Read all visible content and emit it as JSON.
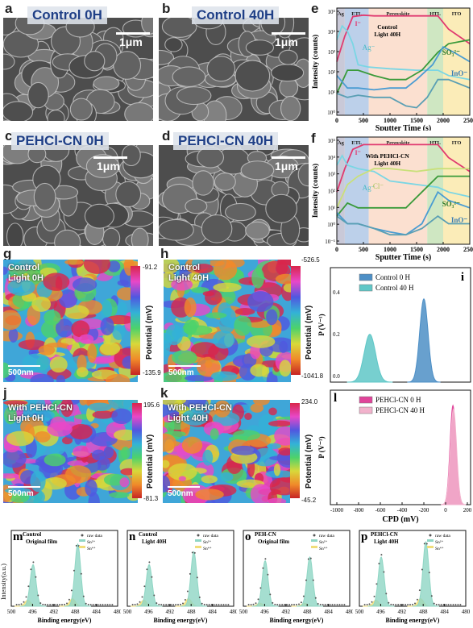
{
  "panels": {
    "a": {
      "letter": "a",
      "title": "Control 0H",
      "scale": "1μm"
    },
    "b": {
      "letter": "b",
      "title": "Control 40H",
      "scale": "1μm"
    },
    "c": {
      "letter": "c",
      "title": "PEHCl-CN 0H",
      "scale": "1μm"
    },
    "d": {
      "letter": "d",
      "title": "PEHCl-CN 40H",
      "scale": "1μm"
    }
  },
  "tof": {
    "e": {
      "letter": "e",
      "regions": [
        "Ag",
        "ETL",
        "Perovskite",
        "HTL",
        "ITO"
      ],
      "annotation_lines": [
        "Control",
        "Light 40H"
      ],
      "species": {
        "i": "I⁻",
        "ag": "Ag⁻",
        "so": "SO₃²⁻",
        "ino": "InO⁻"
      },
      "ylabel": "Intensity (counts)",
      "xlabel": "Sputter Time (s)",
      "xticks": [
        "0",
        "500",
        "1000",
        "1500",
        "2000",
        "2500"
      ],
      "yticks": [
        "10⁵",
        "10⁴",
        "10³",
        "10²",
        "10¹",
        "10⁰"
      ]
    },
    "f": {
      "letter": "f",
      "regions": [
        "Ag",
        "ETL",
        "Perovskite",
        "HTL",
        "ITO"
      ],
      "annotation_lines": [
        "With PEHCl-CN",
        "Light 40H"
      ],
      "species": {
        "i": "I⁻",
        "ag": "Ag⁻",
        "cl": "Cl⁻",
        "so": "SO₃²⁻",
        "ino": "InO⁻"
      },
      "ylabel": "Intensity (counts)",
      "xlabel": "Sputter Time (s)",
      "xticks": [
        "0",
        "500",
        "1000",
        "1500",
        "2000",
        "2500"
      ],
      "yticks": [
        "10⁵",
        "10⁴",
        "10³",
        "10²",
        "10¹",
        "10⁰",
        "10⁻¹"
      ]
    }
  },
  "kpfm": {
    "g": {
      "letter": "g",
      "title": "Control\nLight 0H",
      "max": "-91.2",
      "min": "-135.9",
      "scale": "500nm",
      "cbar_label": "Potential (mV)"
    },
    "h": {
      "letter": "h",
      "title": "Control\nLight 40H",
      "max": "-526.5",
      "min": "-1041.8",
      "scale": "500nm",
      "cbar_label": "Potential (mV)"
    },
    "j": {
      "letter": "j",
      "title": "With PEHCl-CN\nLight 0H",
      "max": "195.6",
      "min": "-81.3",
      "scale": "500nm",
      "cbar_label": "Potential (mV)"
    },
    "k": {
      "letter": "k",
      "title": "With PEHCl-CN\nLight 40H",
      "max": "234.0",
      "min": "-45.2",
      "scale": "500nm",
      "cbar_label": "Potential (mV)"
    }
  },
  "cpd": {
    "i": {
      "letter": "i",
      "legend": [
        "Control 0 H",
        "Control 40 H"
      ],
      "ylabel": "P (V⁻¹)",
      "yticks": [
        "0.4",
        "0.2",
        "0.0"
      ]
    },
    "l": {
      "letter": "l",
      "legend": [
        "PEHCl-CN 0 H",
        "PEHCl-CN 40 H"
      ],
      "ylabel": "P (V⁻¹)",
      "xlabel": "CPD (mV)",
      "xticks": [
        "-1000",
        "-800",
        "-600",
        "-400",
        "-200",
        "0",
        "200"
      ]
    }
  },
  "xps": {
    "m": {
      "letter": "m",
      "title": [
        "Control",
        "Original film"
      ]
    },
    "n": {
      "letter": "n",
      "title": [
        "Control",
        "Light 40H"
      ]
    },
    "o": {
      "letter": "o",
      "title": [
        "PEH-CN",
        "Original film"
      ]
    },
    "p": {
      "letter": "p",
      "title": [
        "PEHCl-CN",
        "Light 40H"
      ]
    },
    "legend": [
      "raw data",
      "Sn²⁺",
      "Sn⁴⁺"
    ],
    "xlabel": "Binding energy(eV)",
    "ylabel": "Intensity(a.u.)",
    "xticks": [
      "500",
      "496",
      "492",
      "488",
      "484",
      "480"
    ]
  },
  "chart_data": [
    {
      "type": "line",
      "panel": "e",
      "title": "",
      "xlabel": "Sputter Time (s)",
      "ylabel": "Intensity (counts)",
      "xlim": [
        0,
        2500
      ],
      "yscale": "log",
      "ylim": [
        0.3,
        300000
      ],
      "series": [
        {
          "name": "I⁻",
          "x": [
            0,
            150,
            300,
            500,
            700,
            1000,
            1500,
            1900,
            2100,
            2500
          ],
          "values": [
            300,
            8000,
            100000,
            120000,
            110000,
            110000,
            110000,
            110000,
            20000,
            3000
          ]
        },
        {
          "name": "Ag⁻",
          "x": [
            0,
            100,
            200,
            300,
            400,
            600,
            1000,
            1500,
            1900,
            2100,
            2500
          ],
          "values": [
            5000,
            30000,
            15000,
            3000,
            200,
            150,
            120,
            100,
            100,
            50,
            30
          ]
        },
        {
          "name": "SO₃²⁻",
          "x": [
            0,
            200,
            400,
            700,
            1000,
            1300,
            1600,
            1900,
            2100,
            2500
          ],
          "values": [
            5,
            100,
            100,
            50,
            30,
            30,
            100,
            1000,
            3000,
            5000
          ]
        },
        {
          "name": "InO⁻",
          "x": [
            0,
            200,
            400,
            700,
            1000,
            1300,
            1500,
            1800,
            2000,
            2200,
            2500
          ],
          "values": [
            50,
            10,
            10,
            8,
            10,
            10,
            30,
            200,
            2000,
            1000,
            300
          ]
        },
        {
          "name": "trace",
          "x": [
            0,
            200,
            400,
            700,
            1000,
            1300,
            1500,
            1700,
            1900,
            2100,
            2500
          ],
          "values": [
            5,
            3,
            4,
            3,
            3,
            1,
            0.8,
            3,
            30,
            30,
            10
          ]
        }
      ]
    },
    {
      "type": "line",
      "panel": "f",
      "title": "",
      "xlabel": "Sputter Time (s)",
      "ylabel": "Intensity (counts)",
      "xlim": [
        0,
        2500
      ],
      "yscale": "log",
      "ylim": [
        0.05,
        300000
      ],
      "series": [
        {
          "name": "I⁻",
          "x": [
            0,
            150,
            300,
            500,
            700,
            1000,
            1500,
            1900,
            2100,
            2500
          ],
          "values": [
            100,
            3000,
            50000,
            100000,
            100000,
            100000,
            100000,
            100000,
            15000,
            2000
          ]
        },
        {
          "name": "Ag⁻",
          "x": [
            0,
            100,
            200,
            400,
            700,
            1000,
            1500,
            1900,
            2100,
            2500
          ],
          "values": [
            5000,
            20000,
            5000,
            3000,
            2000,
            500,
            300,
            200,
            100,
            50
          ]
        },
        {
          "name": "Cl⁻",
          "x": [
            0,
            200,
            400,
            700,
            1000,
            1500,
            1900,
            2100,
            2500
          ],
          "values": [
            10,
            300,
            1000,
            3000,
            3000,
            2000,
            3000,
            3000,
            3000
          ]
        },
        {
          "name": "SO₃²⁻",
          "x": [
            0,
            200,
            400,
            700,
            1000,
            1300,
            1600,
            1900,
            2100,
            2500
          ],
          "values": [
            3,
            20,
            10,
            10,
            10,
            10,
            100,
            1000,
            1000,
            1000
          ]
        },
        {
          "name": "InO⁻",
          "x": [
            0,
            200,
            400,
            700,
            1000,
            1300,
            1600,
            1900,
            2100,
            2500
          ],
          "values": [
            5,
            1,
            1,
            0.5,
            0.3,
            0.2,
            1,
            100,
            30,
            10
          ]
        },
        {
          "name": "trace",
          "x": [
            0,
            200,
            400,
            700,
            1000,
            1300,
            1600,
            1900,
            2100,
            2500
          ],
          "values": [
            3,
            1,
            1,
            0.5,
            0.2,
            0.2,
            0.5,
            3,
            1,
            1
          ]
        }
      ]
    },
    {
      "type": "area",
      "panel": "i",
      "title": "",
      "ylabel": "P (V⁻¹)",
      "xlim": [
        -1100,
        250
      ],
      "ylim": [
        0,
        0.55
      ],
      "series": [
        {
          "name": "Control 0 H",
          "center": -200,
          "peak": 0.4,
          "width": 40
        },
        {
          "name": "Control 40 H",
          "center": -720,
          "peak": 0.23,
          "width": 55
        }
      ]
    },
    {
      "type": "area",
      "panel": "l",
      "title": "",
      "xlabel": "CPD (mV)",
      "ylabel": "P (V⁻¹)",
      "xlim": [
        -1100,
        250
      ],
      "ylim": [
        0,
        0.6
      ],
      "series": [
        {
          "name": "PEHCl-CN 0 H",
          "center": 80,
          "peak": 0.52,
          "width": 28
        },
        {
          "name": "PEHCl-CN 40 H",
          "center": 85,
          "peak": 0.5,
          "width": 30
        }
      ]
    },
    {
      "type": "line",
      "panel": "m",
      "xlabel": "Binding energy(eV)",
      "ylabel": "Intensity(a.u.)",
      "xlim": [
        500,
        480
      ],
      "series": [
        {
          "name": "Sn²⁺",
          "peaks": [
            495.9,
            487.5
          ],
          "heights": [
            0.55,
            0.82
          ]
        },
        {
          "name": "Sn⁴⁺",
          "peaks": [
            496.9,
            488.5
          ],
          "heights": [
            0.08,
            0.1
          ]
        }
      ]
    },
    {
      "type": "line",
      "panel": "n",
      "xlabel": "Binding energy(eV)",
      "xlim": [
        500,
        480
      ],
      "series": [
        {
          "name": "Sn²⁺",
          "peaks": [
            495.9,
            487.5
          ],
          "heights": [
            0.55,
            0.72
          ]
        },
        {
          "name": "Sn⁴⁺",
          "peaks": [
            496.9,
            488.5
          ],
          "heights": [
            0.08,
            0.1
          ]
        }
      ]
    },
    {
      "type": "line",
      "panel": "o",
      "xlabel": "Binding energy(eV)",
      "xlim": [
        500,
        480
      ],
      "series": [
        {
          "name": "Sn²⁺",
          "peaks": [
            495.9,
            487.5
          ],
          "heights": [
            0.6,
            0.65
          ]
        },
        {
          "name": "Sn⁴⁺",
          "peaks": [
            496.9,
            488.5
          ],
          "heights": [
            0.04,
            0.04
          ]
        }
      ]
    },
    {
      "type": "line",
      "panel": "p",
      "xlabel": "Binding energy(eV)",
      "xlim": [
        500,
        480
      ],
      "series": [
        {
          "name": "Sn²⁺",
          "peaks": [
            495.9,
            487.5
          ],
          "heights": [
            0.65,
            0.85
          ]
        },
        {
          "name": "Sn⁴⁺",
          "peaks": [
            496.9,
            488.5
          ],
          "heights": [
            0.08,
            0.1
          ]
        }
      ]
    }
  ]
}
